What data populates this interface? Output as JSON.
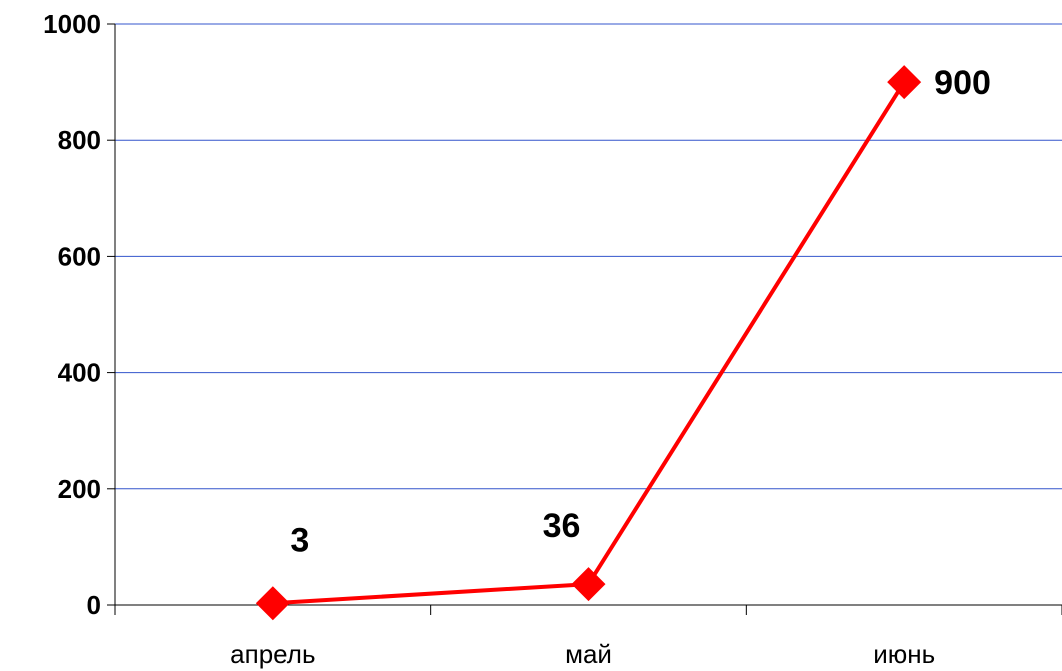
{
  "chart_data": {
    "type": "line",
    "categories": [
      "апрель",
      "май",
      "июнь"
    ],
    "series": [
      {
        "values": [
          3,
          36,
          900
        ]
      }
    ],
    "data_labels": [
      "3",
      "36",
      "900"
    ],
    "y_ticks": [
      "0",
      "200",
      "400",
      "600",
      "800",
      "1000"
    ],
    "ylim": [
      0,
      1000
    ],
    "grid": true,
    "legend": "none",
    "colors": {
      "line": "#ff0000",
      "marker": "#ff0000",
      "gridline": "#3355cc",
      "axis": "#000000"
    },
    "marker": "diamond"
  }
}
